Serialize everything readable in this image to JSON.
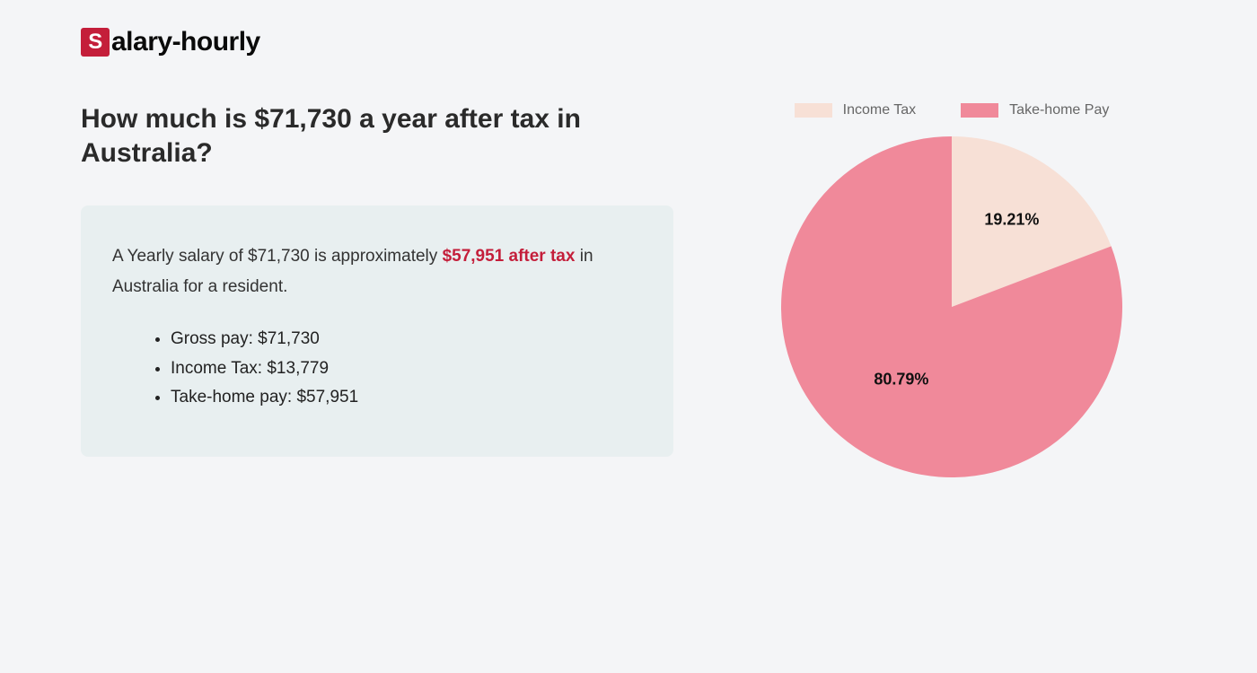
{
  "logo": {
    "initial": "S",
    "rest": "alary-hourly"
  },
  "headline": "How much is $71,730 a year after tax in Australia?",
  "summary": {
    "text_before": "A Yearly salary of $71,730 is approximately ",
    "highlight": "$57,951 after tax",
    "text_after": " in Australia for a resident.",
    "bullets": [
      "Gross pay: $71,730",
      "Income Tax: $13,779",
      "Take-home pay: $57,951"
    ]
  },
  "chart": {
    "type": "pie",
    "radius": 190,
    "background_color": "#f4f5f7",
    "slices": [
      {
        "label": "Income Tax",
        "value": 19.21,
        "display": "19.21%",
        "color": "#f7e0d6"
      },
      {
        "label": "Take-home Pay",
        "value": 80.79,
        "display": "80.79%",
        "color": "#f0899a"
      }
    ],
    "start_angle_deg": -90,
    "label_fontsize": 18,
    "label_color": "#111111",
    "legend_fontsize": 16,
    "legend_color": "#666666",
    "card_bg": "#e8eff0",
    "highlight_color": "#c41e3a"
  }
}
